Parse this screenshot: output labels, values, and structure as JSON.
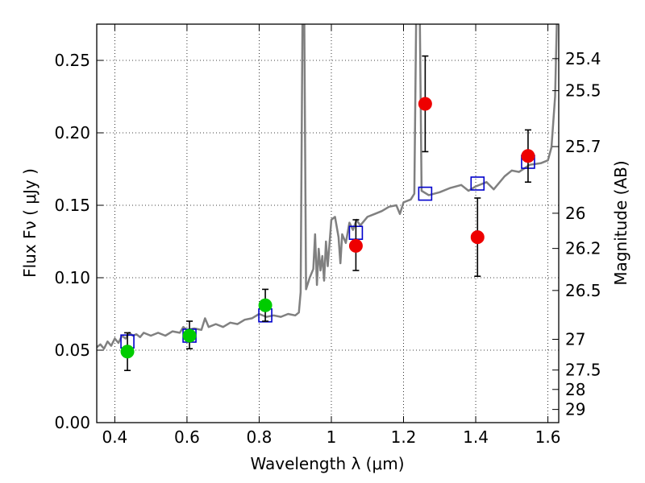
{
  "chart_data": {
    "type": "scatter",
    "xlabel": "Wavelength  λ (μm)",
    "ylabel": "Flux  Fν  ( μJy )",
    "y2label": "Magnitude (AB)",
    "xlim": [
      0.35,
      1.63
    ],
    "ylim": [
      0.0,
      0.275
    ],
    "grid": true,
    "x_ticks": [
      {
        "value": 0.4,
        "label": "0.4"
      },
      {
        "value": 0.6,
        "label": "0.6"
      },
      {
        "value": 0.8,
        "label": "0.8"
      },
      {
        "value": 1.0,
        "label": "1"
      },
      {
        "value": 1.2,
        "label": "1.2"
      },
      {
        "value": 1.4,
        "label": "1.4"
      },
      {
        "value": 1.6,
        "label": "1.6"
      }
    ],
    "y_ticks": [
      {
        "value": 0.0,
        "label": "0.00"
      },
      {
        "value": 0.05,
        "label": "0.05"
      },
      {
        "value": 0.1,
        "label": "0.10"
      },
      {
        "value": 0.15,
        "label": "0.15"
      },
      {
        "value": 0.2,
        "label": "0.20"
      },
      {
        "value": 0.25,
        "label": "0.25"
      }
    ],
    "y2_ticks": [
      {
        "flux": 0.2512,
        "label": "25.4"
      },
      {
        "flux": 0.2291,
        "label": "25.5"
      },
      {
        "flux": 0.1905,
        "label": "25.7"
      },
      {
        "flux": 0.1445,
        "label": "26"
      },
      {
        "flux": 0.1202,
        "label": "26.2"
      },
      {
        "flux": 0.0912,
        "label": "26.5"
      },
      {
        "flux": 0.0575,
        "label": "27"
      },
      {
        "flux": 0.0363,
        "label": "27.5"
      },
      {
        "flux": 0.0229,
        "label": "28"
      },
      {
        "flux": 0.0091,
        "label": "29"
      }
    ],
    "series": [
      {
        "kind": "line",
        "color": "#808080",
        "points": [
          [
            0.35,
            0.052
          ],
          [
            0.36,
            0.054
          ],
          [
            0.37,
            0.051
          ],
          [
            0.38,
            0.056
          ],
          [
            0.39,
            0.053
          ],
          [
            0.4,
            0.058
          ],
          [
            0.41,
            0.055
          ],
          [
            0.42,
            0.06
          ],
          [
            0.43,
            0.058
          ],
          [
            0.44,
            0.062
          ],
          [
            0.45,
            0.06
          ],
          [
            0.46,
            0.061
          ],
          [
            0.47,
            0.059
          ],
          [
            0.48,
            0.062
          ],
          [
            0.5,
            0.06
          ],
          [
            0.52,
            0.062
          ],
          [
            0.54,
            0.06
          ],
          [
            0.56,
            0.063
          ],
          [
            0.58,
            0.062
          ],
          [
            0.59,
            0.066
          ],
          [
            0.6,
            0.064
          ],
          [
            0.62,
            0.065
          ],
          [
            0.64,
            0.064
          ],
          [
            0.65,
            0.072
          ],
          [
            0.66,
            0.066
          ],
          [
            0.68,
            0.068
          ],
          [
            0.7,
            0.066
          ],
          [
            0.72,
            0.069
          ],
          [
            0.74,
            0.068
          ],
          [
            0.76,
            0.071
          ],
          [
            0.78,
            0.072
          ],
          [
            0.8,
            0.075
          ],
          [
            0.82,
            0.073
          ],
          [
            0.84,
            0.074
          ],
          [
            0.86,
            0.073
          ],
          [
            0.88,
            0.075
          ],
          [
            0.9,
            0.074
          ],
          [
            0.91,
            0.076
          ],
          [
            0.915,
            0.09
          ],
          [
            0.92,
            0.28
          ],
          [
            0.925,
            0.28
          ],
          [
            0.93,
            0.092
          ],
          [
            0.94,
            0.1
          ],
          [
            0.95,
            0.106
          ],
          [
            0.955,
            0.13
          ],
          [
            0.96,
            0.095
          ],
          [
            0.965,
            0.12
          ],
          [
            0.97,
            0.105
          ],
          [
            0.975,
            0.115
          ],
          [
            0.98,
            0.098
          ],
          [
            0.985,
            0.125
          ],
          [
            0.99,
            0.108
          ],
          [
            1.0,
            0.14
          ],
          [
            1.01,
            0.142
          ],
          [
            1.02,
            0.128
          ],
          [
            1.025,
            0.11
          ],
          [
            1.03,
            0.13
          ],
          [
            1.04,
            0.124
          ],
          [
            1.05,
            0.138
          ],
          [
            1.06,
            0.133
          ],
          [
            1.07,
            0.14
          ],
          [
            1.08,
            0.136
          ],
          [
            1.1,
            0.142
          ],
          [
            1.12,
            0.144
          ],
          [
            1.14,
            0.146
          ],
          [
            1.16,
            0.149
          ],
          [
            1.18,
            0.15
          ],
          [
            1.19,
            0.144
          ],
          [
            1.2,
            0.152
          ],
          [
            1.22,
            0.154
          ],
          [
            1.23,
            0.158
          ],
          [
            1.235,
            0.28
          ],
          [
            1.245,
            0.28
          ],
          [
            1.25,
            0.16
          ],
          [
            1.27,
            0.157
          ],
          [
            1.3,
            0.159
          ],
          [
            1.33,
            0.162
          ],
          [
            1.36,
            0.164
          ],
          [
            1.38,
            0.16
          ],
          [
            1.4,
            0.163
          ],
          [
            1.43,
            0.166
          ],
          [
            1.45,
            0.161
          ],
          [
            1.48,
            0.17
          ],
          [
            1.5,
            0.174
          ],
          [
            1.52,
            0.173
          ],
          [
            1.55,
            0.178
          ],
          [
            1.58,
            0.179
          ],
          [
            1.6,
            0.181
          ],
          [
            1.61,
            0.19
          ],
          [
            1.62,
            0.225
          ],
          [
            1.625,
            0.28
          ]
        ]
      },
      {
        "name": "model-boxes",
        "kind": "square",
        "color": "#0000cc",
        "points": [
          [
            0.435,
            0.056
          ],
          [
            0.607,
            0.06
          ],
          [
            0.817,
            0.074
          ],
          [
            1.068,
            0.131
          ],
          [
            1.26,
            0.158
          ],
          [
            1.405,
            0.165
          ],
          [
            1.545,
            0.18
          ]
        ]
      },
      {
        "kind": "errorbar-marker",
        "color": "#00cc00",
        "points": [
          {
            "x": 0.435,
            "y": 0.049,
            "lo": 0.036,
            "hi": 0.062
          },
          {
            "x": 0.607,
            "y": 0.06,
            "lo": 0.051,
            "hi": 0.07
          },
          {
            "x": 0.817,
            "y": 0.081,
            "lo": 0.07,
            "hi": 0.092
          }
        ]
      },
      {
        "kind": "errorbar-marker",
        "color": "#ee0000",
        "points": [
          {
            "x": 1.068,
            "y": 0.122,
            "lo": 0.105,
            "hi": 0.14
          },
          {
            "x": 1.26,
            "y": 0.22,
            "lo": 0.187,
            "hi": 0.253
          },
          {
            "x": 1.405,
            "y": 0.128,
            "lo": 0.101,
            "hi": 0.155
          },
          {
            "x": 1.545,
            "y": 0.184,
            "lo": 0.166,
            "hi": 0.202
          }
        ]
      }
    ]
  }
}
